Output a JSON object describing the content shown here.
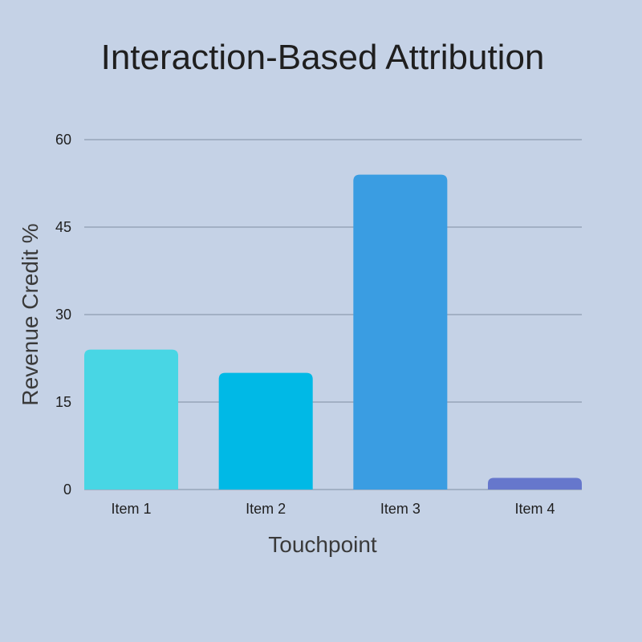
{
  "chart_data": {
    "type": "bar",
    "title": "Interaction-Based Attribution",
    "xlabel": "Touchpoint",
    "ylabel": "Revenue Credit %",
    "categories": [
      "Item 1",
      "Item 2",
      "Item 3",
      "Item 4"
    ],
    "values": [
      24,
      20,
      54,
      2
    ],
    "ylim": [
      0,
      60
    ],
    "yticks": [
      0,
      15,
      30,
      45,
      60
    ],
    "grid": true,
    "legend": "none",
    "colors": [
      "#48d6e4",
      "#00b9e6",
      "#3a9de2",
      "#6677cc"
    ],
    "background": "#c5d2e6"
  }
}
